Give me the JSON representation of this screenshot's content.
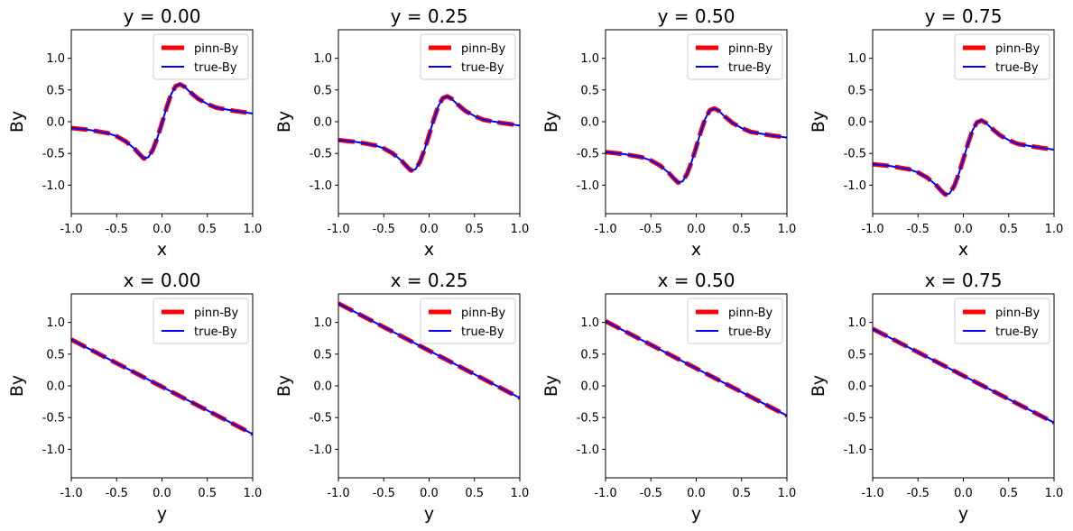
{
  "chart_data": {
    "type": "line",
    "colors": {
      "pinn": "#ff0000",
      "true": "#0000ff"
    },
    "legend": {
      "placement": "top-right",
      "entries": [
        "pinn-By",
        "true-By"
      ]
    },
    "panels": [
      {
        "title": "y = 0.00",
        "xlabel": "x",
        "ylabel": "By",
        "xlim": [
          -1.0,
          1.0
        ],
        "ylim": [
          -1.45,
          1.45
        ],
        "xticks": [
          "-1.0",
          "-0.5",
          "0.0",
          "0.5",
          "1.0"
        ],
        "yticks": [
          "-1.0",
          "-0.5",
          "0.0",
          "0.5",
          "1.0"
        ],
        "x": [
          -1.0,
          -0.8,
          -0.6,
          -0.5,
          -0.4,
          -0.3,
          -0.25,
          -0.2,
          -0.15,
          -0.1,
          -0.05,
          0.0,
          0.05,
          0.1,
          0.15,
          0.2,
          0.25,
          0.3,
          0.4,
          0.5,
          0.6,
          0.8,
          1.0
        ],
        "series": [
          {
            "name": "pinn-By",
            "values": [
              -0.1,
              -0.13,
              -0.18,
              -0.23,
              -0.31,
              -0.43,
              -0.51,
              -0.58,
              -0.56,
              -0.44,
              -0.25,
              -0.02,
              0.22,
              0.43,
              0.56,
              0.59,
              0.55,
              0.48,
              0.36,
              0.28,
              0.22,
              0.17,
              0.13
            ]
          },
          {
            "name": "true-By",
            "values": [
              -0.1,
              -0.13,
              -0.18,
              -0.23,
              -0.31,
              -0.43,
              -0.51,
              -0.58,
              -0.56,
              -0.44,
              -0.25,
              -0.02,
              0.22,
              0.43,
              0.56,
              0.59,
              0.55,
              0.48,
              0.36,
              0.28,
              0.22,
              0.17,
              0.13
            ]
          }
        ]
      },
      {
        "title": "y = 0.25",
        "xlabel": "x",
        "ylabel": "By",
        "xlim": [
          -1.0,
          1.0
        ],
        "ylim": [
          -1.45,
          1.45
        ],
        "xticks": [
          "-1.0",
          "-0.5",
          "0.0",
          "0.5",
          "1.0"
        ],
        "yticks": [
          "-1.0",
          "-0.5",
          "0.0",
          "0.5",
          "1.0"
        ],
        "x": [
          -1.0,
          -0.8,
          -0.6,
          -0.5,
          -0.4,
          -0.3,
          -0.25,
          -0.2,
          -0.15,
          -0.1,
          -0.05,
          0.0,
          0.05,
          0.1,
          0.15,
          0.2,
          0.25,
          0.3,
          0.4,
          0.5,
          0.6,
          0.8,
          1.0
        ],
        "series": [
          {
            "name": "pinn-By",
            "values": [
              -0.29,
              -0.32,
              -0.37,
              -0.42,
              -0.5,
              -0.62,
              -0.7,
              -0.77,
              -0.75,
              -0.63,
              -0.44,
              -0.21,
              0.03,
              0.24,
              0.37,
              0.4,
              0.36,
              0.29,
              0.17,
              0.09,
              0.03,
              -0.02,
              -0.06
            ]
          },
          {
            "name": "true-By",
            "values": [
              -0.29,
              -0.32,
              -0.37,
              -0.42,
              -0.5,
              -0.62,
              -0.7,
              -0.77,
              -0.75,
              -0.63,
              -0.44,
              -0.21,
              0.03,
              0.24,
              0.37,
              0.4,
              0.36,
              0.29,
              0.17,
              0.09,
              0.03,
              -0.02,
              -0.06
            ]
          }
        ]
      },
      {
        "title": "y = 0.50",
        "xlabel": "x",
        "ylabel": "By",
        "xlim": [
          -1.0,
          1.0
        ],
        "ylim": [
          -1.45,
          1.45
        ],
        "xticks": [
          "-1.0",
          "-0.5",
          "0.0",
          "0.5",
          "1.0"
        ],
        "yticks": [
          "-1.0",
          "-0.5",
          "0.0",
          "0.5",
          "1.0"
        ],
        "x": [
          -1.0,
          -0.8,
          -0.6,
          -0.5,
          -0.4,
          -0.3,
          -0.25,
          -0.2,
          -0.15,
          -0.1,
          -0.05,
          0.0,
          0.05,
          0.1,
          0.15,
          0.2,
          0.25,
          0.3,
          0.4,
          0.5,
          0.6,
          0.8,
          1.0
        ],
        "series": [
          {
            "name": "pinn-By",
            "values": [
              -0.48,
              -0.51,
              -0.56,
              -0.61,
              -0.69,
              -0.81,
              -0.89,
              -0.96,
              -0.94,
              -0.82,
              -0.63,
              -0.4,
              -0.16,
              0.05,
              0.18,
              0.21,
              0.17,
              0.1,
              -0.02,
              -0.1,
              -0.16,
              -0.21,
              -0.25
            ]
          },
          {
            "name": "true-By",
            "values": [
              -0.48,
              -0.51,
              -0.56,
              -0.61,
              -0.69,
              -0.81,
              -0.89,
              -0.96,
              -0.94,
              -0.82,
              -0.63,
              -0.4,
              -0.16,
              0.05,
              0.18,
              0.21,
              0.17,
              0.1,
              -0.02,
              -0.1,
              -0.16,
              -0.21,
              -0.25
            ]
          }
        ]
      },
      {
        "title": "y = 0.75",
        "xlabel": "x",
        "ylabel": "By",
        "xlim": [
          -1.0,
          1.0
        ],
        "ylim": [
          -1.45,
          1.45
        ],
        "xticks": [
          "-1.0",
          "-0.5",
          "0.0",
          "0.5",
          "1.0"
        ],
        "yticks": [
          "-1.0",
          "-0.5",
          "0.0",
          "0.5",
          "1.0"
        ],
        "x": [
          -1.0,
          -0.8,
          -0.6,
          -0.5,
          -0.4,
          -0.3,
          -0.25,
          -0.2,
          -0.15,
          -0.1,
          -0.05,
          0.0,
          0.05,
          0.1,
          0.15,
          0.2,
          0.25,
          0.3,
          0.4,
          0.5,
          0.6,
          0.8,
          1.0
        ],
        "series": [
          {
            "name": "pinn-By",
            "values": [
              -0.67,
              -0.7,
              -0.75,
              -0.8,
              -0.88,
              -1.0,
              -1.08,
              -1.15,
              -1.13,
              -1.01,
              -0.82,
              -0.59,
              -0.35,
              -0.14,
              -0.01,
              0.02,
              -0.02,
              -0.09,
              -0.21,
              -0.29,
              -0.35,
              -0.4,
              -0.44
            ]
          },
          {
            "name": "true-By",
            "values": [
              -0.67,
              -0.7,
              -0.75,
              -0.8,
              -0.88,
              -1.0,
              -1.08,
              -1.15,
              -1.13,
              -1.01,
              -0.82,
              -0.59,
              -0.35,
              -0.14,
              -0.01,
              0.02,
              -0.02,
              -0.09,
              -0.21,
              -0.29,
              -0.35,
              -0.4,
              -0.44
            ]
          }
        ]
      },
      {
        "title": "x = 0.00",
        "xlabel": "y",
        "ylabel": "By",
        "xlim": [
          -1.0,
          1.0
        ],
        "ylim": [
          -1.45,
          1.45
        ],
        "xticks": [
          "-1.0",
          "-0.5",
          "0.0",
          "0.5",
          "1.0"
        ],
        "yticks": [
          "-1.0",
          "-0.5",
          "0.0",
          "0.5",
          "1.0"
        ],
        "x": [
          -1.0,
          1.0
        ],
        "series": [
          {
            "name": "pinn-By",
            "values": [
              0.73,
              -0.76
            ]
          },
          {
            "name": "true-By",
            "values": [
              0.73,
              -0.76
            ]
          }
        ]
      },
      {
        "title": "x = 0.25",
        "xlabel": "y",
        "ylabel": "By",
        "xlim": [
          -1.0,
          1.0
        ],
        "ylim": [
          -1.45,
          1.45
        ],
        "xticks": [
          "-1.0",
          "-0.5",
          "0.0",
          "0.5",
          "1.0"
        ],
        "yticks": [
          "-1.0",
          "-0.5",
          "0.0",
          "0.5",
          "1.0"
        ],
        "x": [
          -1.0,
          1.0
        ],
        "series": [
          {
            "name": "pinn-By",
            "values": [
              1.3,
              -0.19
            ]
          },
          {
            "name": "true-By",
            "values": [
              1.3,
              -0.19
            ]
          }
        ]
      },
      {
        "title": "x = 0.50",
        "xlabel": "y",
        "ylabel": "By",
        "xlim": [
          -1.0,
          1.0
        ],
        "ylim": [
          -1.45,
          1.45
        ],
        "xticks": [
          "-1.0",
          "-0.5",
          "0.0",
          "0.5",
          "1.0"
        ],
        "yticks": [
          "-1.0",
          "-0.5",
          "0.0",
          "0.5",
          "1.0"
        ],
        "x": [
          -1.0,
          1.0
        ],
        "series": [
          {
            "name": "pinn-By",
            "values": [
              1.02,
              -0.47
            ]
          },
          {
            "name": "true-By",
            "values": [
              1.02,
              -0.47
            ]
          }
        ]
      },
      {
        "title": "x = 0.75",
        "xlabel": "y",
        "ylabel": "By",
        "xlim": [
          -1.0,
          1.0
        ],
        "ylim": [
          -1.45,
          1.45
        ],
        "xticks": [
          "-1.0",
          "-0.5",
          "0.0",
          "0.5",
          "1.0"
        ],
        "yticks": [
          "-1.0",
          "-0.5",
          "0.0",
          "0.5",
          "1.0"
        ],
        "x": [
          -1.0,
          1.0
        ],
        "series": [
          {
            "name": "pinn-By",
            "values": [
              0.9,
              -0.58
            ]
          },
          {
            "name": "true-By",
            "values": [
              0.9,
              -0.58
            ]
          }
        ]
      }
    ]
  }
}
